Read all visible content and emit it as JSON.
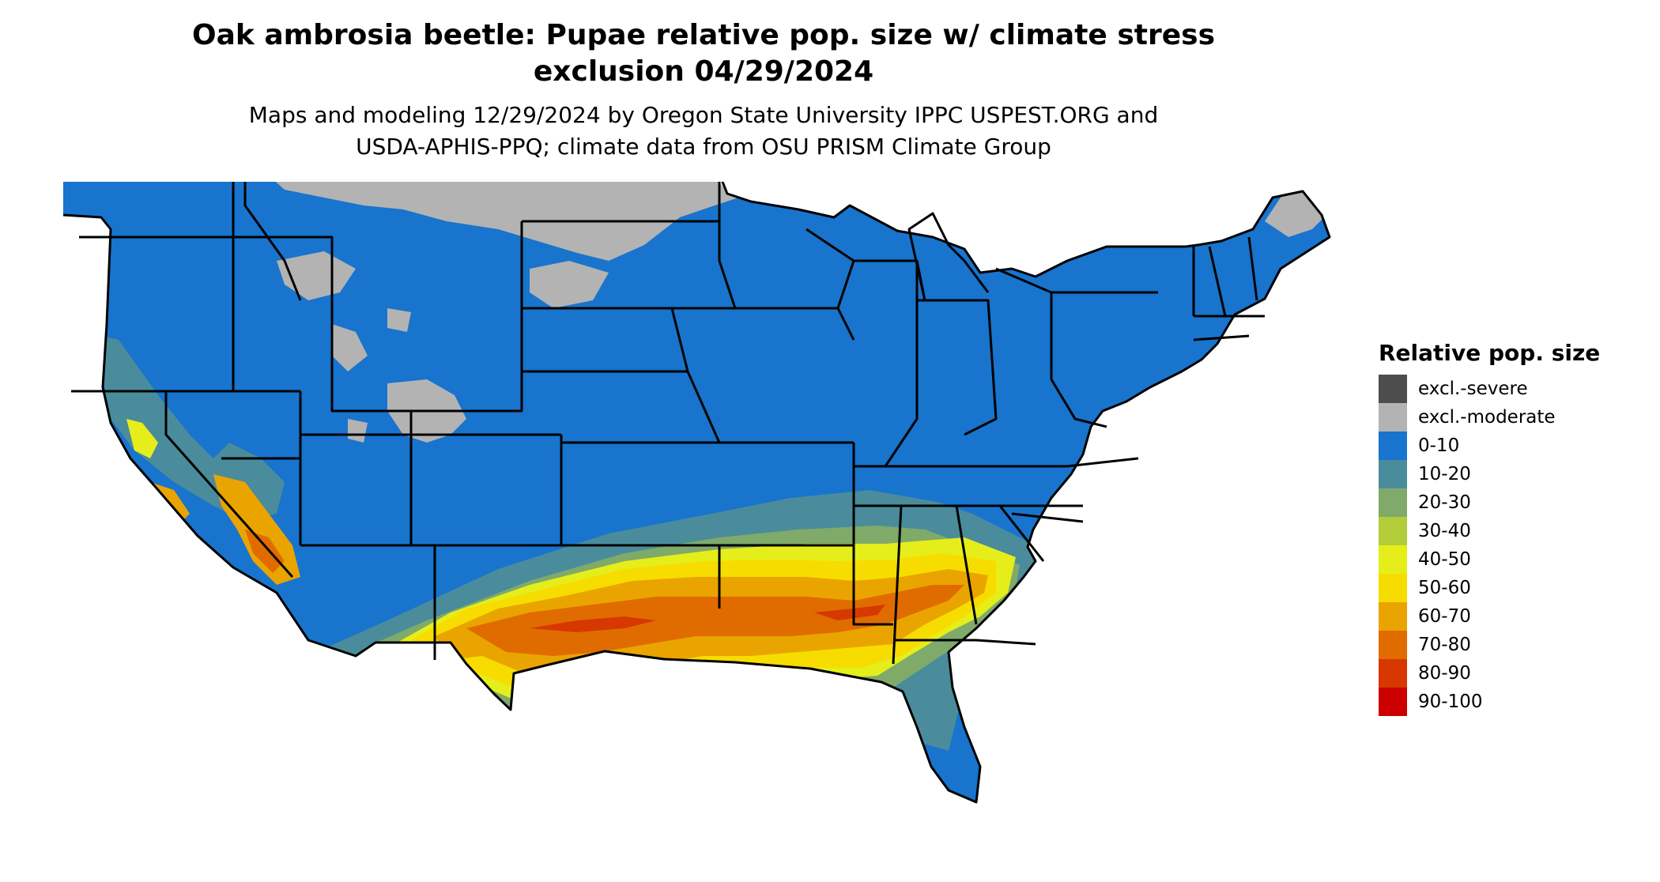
{
  "title": {
    "line1": "Oak ambrosia beetle: Pupae relative pop. size w/ climate stress",
    "line2": "exclusion 04/29/2024"
  },
  "subtitle": {
    "line1": "Maps and modeling 12/29/2024 by Oregon State University IPPC USPEST.ORG and",
    "line2": "USDA-APHIS-PPQ; climate data from OSU PRISM Climate Group"
  },
  "legend": {
    "title": "Relative pop. size",
    "items": [
      {
        "label": "excl.-severe",
        "color": "#4d4d4d"
      },
      {
        "label": "excl.-moderate",
        "color": "#b3b3b3"
      },
      {
        "label": "0-10",
        "color": "#1874cd"
      },
      {
        "label": "10-20",
        "color": "#4a8c9c"
      },
      {
        "label": "20-30",
        "color": "#7faa6a"
      },
      {
        "label": "30-40",
        "color": "#b3cc3a"
      },
      {
        "label": "40-50",
        "color": "#e5ee1a"
      },
      {
        "label": "50-60",
        "color": "#f7dc00"
      },
      {
        "label": "60-70",
        "color": "#eaa400"
      },
      {
        "label": "70-80",
        "color": "#e06c00"
      },
      {
        "label": "80-90",
        "color": "#d63800"
      },
      {
        "label": "90-100",
        "color": "#cc0000"
      }
    ]
  }
}
